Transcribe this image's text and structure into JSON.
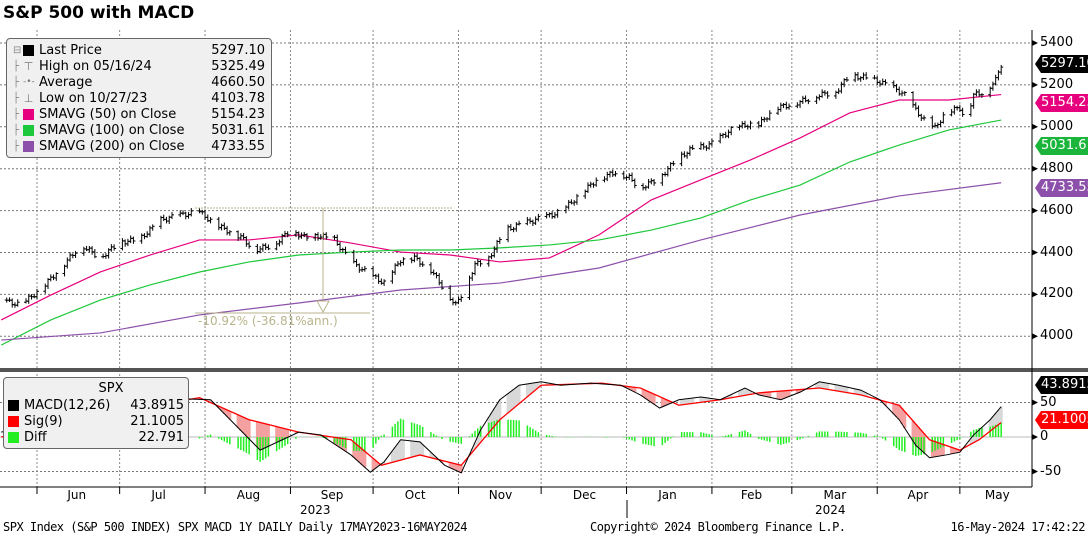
{
  "title": "S&P 500 with MACD",
  "legend_price": [
    {
      "label": "Last Price",
      "value": "5297.10",
      "icon": "black-square"
    },
    {
      "label": "High on 05/16/24",
      "value": "5325.49",
      "icon": "high-marker-icon"
    },
    {
      "label": "Average",
      "value": "4660.50",
      "icon": "average-marker-icon"
    },
    {
      "label": "Low on 10/27/23",
      "value": "4103.78",
      "icon": "low-marker-icon"
    },
    {
      "label": "SMAVG (50)  on Close",
      "value": "5154.23",
      "color": "#e6007e"
    },
    {
      "label": "SMAVG (100)  on Close",
      "value": "5031.61",
      "color": "#1ec83c"
    },
    {
      "label": "SMAVG (200)  on Close",
      "value": "4733.55",
      "color": "#8c50aa"
    }
  ],
  "legend_macd": {
    "title": "SPX",
    "rows": [
      {
        "label": "MACD(12,26)",
        "value": "43.8915",
        "color": "#000000"
      },
      {
        "label": "Sig(9)",
        "value": "21.1005",
        "color": "#ff0000"
      },
      {
        "label": "Diff",
        "value": "22.791",
        "color": "#22ee22"
      }
    ]
  },
  "annotation": "-10.92% (-36.81%ann.)",
  "tags": {
    "last": "5297.10",
    "sma50": "5154.23",
    "sma100": "5031.61",
    "sma200": "4733.55",
    "macd": "43.8915",
    "sig": "21.1005"
  },
  "footer": {
    "left": "SPX Index (S&P 500 INDEX) SPX MACD 1Y DAILY  Daily 17MAY2023-16MAY2024",
    "center": "Copyright© 2024 Bloomberg Finance L.P.",
    "right": "16-May-2024 17:42:22"
  },
  "chart_data": [
    {
      "type": "line",
      "title": "S&P 500 with MACD",
      "x_unit": "days since 17MAY2023",
      "ylim": [
        3950,
        5450
      ],
      "yticks": [
        "5400",
        "5200",
        "5000",
        "4800",
        "4600",
        "4400",
        "4200",
        "4000"
      ],
      "xticks": [
        "Jun",
        "Jul",
        "Aug",
        "Sep",
        "Oct",
        "Nov",
        "Dec",
        "Jan",
        "Feb",
        "Mar",
        "Apr",
        "May"
      ],
      "years": [
        "2023",
        "2024"
      ],
      "series": [
        {
          "name": "Last Price",
          "color": "#000000",
          "x": [
            2,
            9,
            16,
            23,
            31,
            38,
            45,
            52,
            60,
            67,
            74,
            80,
            89,
            94,
            101,
            107,
            112,
            118,
            123,
            129,
            136,
            141,
            147,
            152,
            158,
            163,
            167,
            170,
            174,
            179,
            185,
            190,
            198,
            205,
            212,
            218,
            225,
            230,
            234,
            241,
            247,
            252,
            259,
            267,
            272,
            277,
            283,
            288,
            294,
            299,
            305,
            310,
            316,
            321,
            326,
            330,
            334,
            337,
            341,
            345,
            350,
            352,
            355,
            359,
            363,
            365
          ],
          "values": [
            4173,
            4149,
            4221,
            4317,
            4436,
            4374,
            4450,
            4460,
            4555,
            4579,
            4593,
            4531,
            4474,
            4412,
            4436,
            4507,
            4474,
            4479,
            4460,
            4355,
            4293,
            4254,
            4364,
            4374,
            4317,
            4221,
            4149,
            4221,
            4341,
            4374,
            4507,
            4531,
            4565,
            4593,
            4675,
            4746,
            4784,
            4756,
            4708,
            4756,
            4842,
            4889,
            4913,
            4985,
            5009,
            5009,
            5090,
            5104,
            5128,
            5152,
            5166,
            5247,
            5233,
            5214,
            5185,
            5152,
            5080,
            5032,
            4994,
            5071,
            5090,
            5032,
            5152,
            5166,
            5223,
            5297
          ]
        },
        {
          "name": "SMAVG (50)",
          "color": "#e6007e",
          "x": [
            2,
            20,
            38,
            56,
            74,
            92,
            110,
            129,
            147,
            165,
            183,
            201,
            219,
            238,
            256,
            274,
            292,
            310,
            328,
            346,
            365
          ],
          "values": [
            4078,
            4197,
            4307,
            4388,
            4460,
            4460,
            4484,
            4445,
            4402,
            4388,
            4355,
            4374,
            4484,
            4651,
            4747,
            4842,
            4947,
            5066,
            5128,
            5128,
            5154
          ]
        },
        {
          "name": "SMAVG (100)",
          "color": "#1ec83c",
          "x": [
            2,
            20,
            38,
            56,
            74,
            92,
            110,
            129,
            147,
            165,
            183,
            201,
            219,
            238,
            256,
            274,
            292,
            310,
            328,
            346,
            365
          ],
          "values": [
            3958,
            4078,
            4173,
            4245,
            4307,
            4355,
            4388,
            4402,
            4412,
            4412,
            4422,
            4436,
            4460,
            4507,
            4565,
            4651,
            4722,
            4832,
            4913,
            4985,
            5032
          ]
        },
        {
          "name": "SMAVG (200)",
          "color": "#8c50aa",
          "x": [
            2,
            38,
            74,
            110,
            147,
            183,
            219,
            256,
            292,
            328,
            365
          ],
          "values": [
            3982,
            4016,
            4102,
            4159,
            4221,
            4254,
            4326,
            4460,
            4579,
            4670,
            4733
          ]
        }
      ]
    },
    {
      "type": "line",
      "title": "SPX MACD",
      "ylim": [
        -70,
        95
      ],
      "yticks": [
        "50",
        "0",
        "-50"
      ],
      "series": [
        {
          "name": "MACD(12,26)",
          "color": "#000000",
          "x": [
            2,
            56,
            78,
            96,
            110,
            118,
            129,
            136,
            141,
            147,
            154,
            163,
            169,
            176,
            183,
            190,
            198,
            205,
            216,
            227,
            234,
            241,
            248,
            256,
            263,
            272,
            277,
            285,
            292,
            299,
            306,
            314,
            321,
            328,
            334,
            339,
            345,
            350,
            355,
            361,
            365
          ],
          "values": [
            7,
            57,
            54,
            -19,
            7,
            3,
            -26,
            -51,
            -36,
            -4,
            -7,
            -41,
            -52,
            10,
            54,
            75,
            80,
            75,
            78,
            75,
            61,
            42,
            54,
            58,
            54,
            71,
            61,
            54,
            65,
            80,
            75,
            68,
            54,
            25,
            -12,
            -30,
            -26,
            -22,
            3,
            25,
            44
          ]
        },
        {
          "name": "Sig(9)",
          "color": "#ff0000",
          "x": [
            2,
            38,
            74,
            92,
            110,
            129,
            140,
            154,
            169,
            183,
            198,
            220,
            234,
            248,
            263,
            277,
            299,
            314,
            328,
            339,
            350,
            357,
            365
          ],
          "values": [
            0,
            32,
            57,
            25,
            7,
            -4,
            -41,
            -26,
            -41,
            25,
            75,
            78,
            71,
            46,
            54,
            64,
            71,
            61,
            46,
            -4,
            -19,
            -4,
            21
          ]
        }
      ]
    }
  ]
}
